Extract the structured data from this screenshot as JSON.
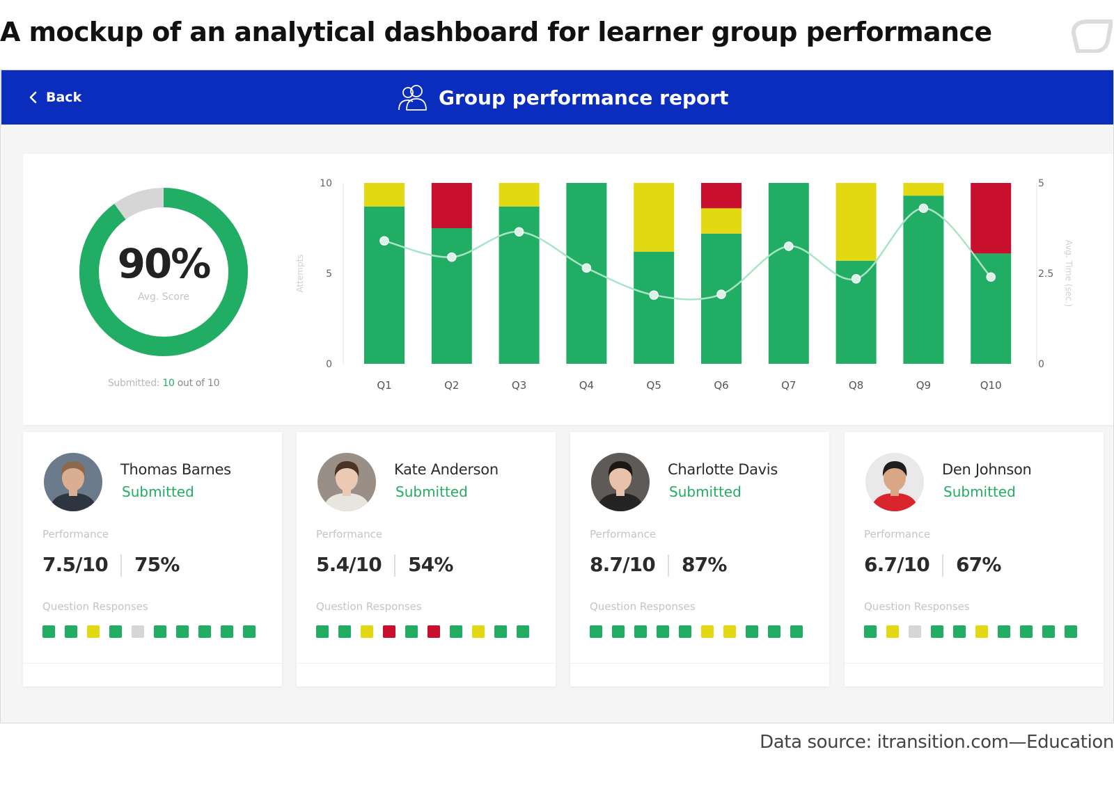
{
  "page": {
    "heading": "A mockup of an analytical dashboard for learner group performance",
    "source": "Data source: itransition.com—Education"
  },
  "header": {
    "back_label": "Back",
    "title": "Group performance report",
    "background_color": "#0a2dbd"
  },
  "summary": {
    "score": "90%",
    "score_fraction": 0.9,
    "score_label": "Avg. Score",
    "submitted_prefix": "Submitted:",
    "submitted_count": "10",
    "submitted_suffix": "out of 10"
  },
  "colors": {
    "correct": "#21ad64",
    "partial": "#e3d912",
    "wrong": "#c8102e",
    "skipped": "#d6d6d6",
    "line": "#a8e4c6"
  },
  "chart_data": {
    "type": "bar",
    "stacked": true,
    "categories": [
      "Q1",
      "Q2",
      "Q3",
      "Q4",
      "Q5",
      "Q6",
      "Q7",
      "Q8",
      "Q9",
      "Q10"
    ],
    "series": [
      {
        "color_key": "correct",
        "values": [
          8.7,
          7.5,
          8.7,
          10,
          6.2,
          7.2,
          10,
          5.7,
          9.3,
          6.1
        ]
      },
      {
        "color_key": "partial",
        "values": [
          1.3,
          0,
          1.3,
          0,
          3.8,
          1.4,
          0,
          4.3,
          0.7,
          0
        ]
      },
      {
        "color_key": "wrong",
        "values": [
          0,
          2.5,
          0,
          0,
          0,
          1.4,
          0,
          0,
          0,
          3.9
        ]
      }
    ],
    "line": {
      "axis": "right",
      "values": [
        3.4,
        2.95,
        3.65,
        2.65,
        1.9,
        1.92,
        3.25,
        2.35,
        4.3,
        2.4
      ]
    },
    "ylabel": "Attempts",
    "ylabel_right": "Avg. Time (sec.)",
    "ylim": [
      0,
      10
    ],
    "ylim_right": [
      0,
      5
    ],
    "yticks": [
      "0",
      "5",
      "10"
    ],
    "yticks_right": [
      "0",
      "2.5",
      "5"
    ],
    "grid": false
  },
  "learners": [
    {
      "name": "Thomas Barnes",
      "status": "Submitted",
      "performance_label": "Performance",
      "score": "7.5/10",
      "percent": "75%",
      "responses_label": "Question Responses",
      "responses": [
        "correct",
        "correct",
        "partial",
        "correct",
        "skipped",
        "correct",
        "correct",
        "correct",
        "correct",
        "correct"
      ],
      "avatar": {
        "bg": "#6c7b8c",
        "skin": "#d9ae92",
        "hair": "#8a6a4a",
        "cloth": "#2e3440"
      }
    },
    {
      "name": "Kate Anderson",
      "status": "Submitted",
      "performance_label": "Performance",
      "score": "5.4/10",
      "percent": "54%",
      "responses_label": "Question Responses",
      "responses": [
        "correct",
        "correct",
        "partial",
        "wrong",
        "correct",
        "wrong",
        "correct",
        "partial",
        "correct",
        "correct"
      ],
      "avatar": {
        "bg": "#9a8f86",
        "skin": "#ecc9b4",
        "hair": "#4a3226",
        "cloth": "#e8e4de"
      }
    },
    {
      "name": "Charlotte Davis",
      "status": "Submitted",
      "performance_label": "Performance",
      "score": "8.7/10",
      "percent": "87%",
      "responses_label": "Question Responses",
      "responses": [
        "correct",
        "correct",
        "correct",
        "correct",
        "correct",
        "partial",
        "partial",
        "correct",
        "correct",
        "correct"
      ],
      "avatar": {
        "bg": "#5e5a57",
        "skin": "#e8c2aa",
        "hair": "#1c1715",
        "cloth": "#242424"
      }
    },
    {
      "name": "Den Johnson",
      "status": "Submitted",
      "performance_label": "Performance",
      "score": "6.7/10",
      "percent": "67%",
      "responses_label": "Question Responses",
      "responses": [
        "correct",
        "partial",
        "skipped",
        "correct",
        "correct",
        "partial",
        "correct",
        "correct",
        "correct",
        "correct"
      ],
      "avatar": {
        "bg": "#e9e9e9",
        "skin": "#d9a686",
        "hair": "#1e1e1e",
        "cloth": "#d8262c"
      }
    }
  ]
}
